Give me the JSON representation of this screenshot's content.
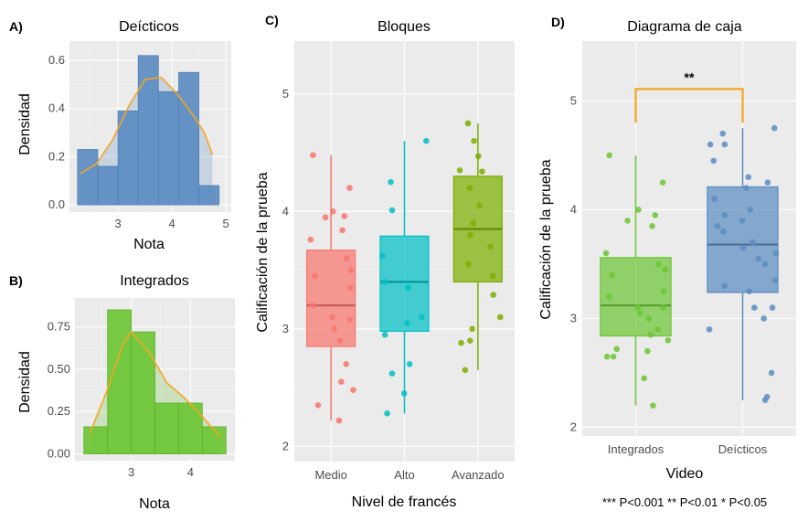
{
  "figure": {
    "footnote": "*** P<0.001 ** P<0.01 * P<0.05"
  },
  "chart_data": [
    {
      "id": "A",
      "panel_tag": "A)",
      "type": "bar",
      "subtype": "histogram_with_density",
      "title": "Deícticos",
      "xlabel": "Nota",
      "ylabel": "Densidad",
      "xlim": [
        2.1,
        5.1
      ],
      "ylim": [
        -0.03,
        0.68
      ],
      "x_ticks": [
        3,
        4,
        5
      ],
      "y_ticks": [
        0.0,
        0.2,
        0.4,
        0.6
      ],
      "y_tick_labels": [
        "0.0",
        "0.2",
        "0.4",
        "0.6"
      ],
      "bins": [
        {
          "x0": 2.25,
          "x1": 2.625,
          "density": 0.23
        },
        {
          "x0": 2.625,
          "x1": 3.0,
          "density": 0.16
        },
        {
          "x0": 3.0,
          "x1": 3.375,
          "density": 0.39
        },
        {
          "x0": 3.375,
          "x1": 3.75,
          "density": 0.62
        },
        {
          "x0": 3.75,
          "x1": 4.125,
          "density": 0.47
        },
        {
          "x0": 4.125,
          "x1": 4.5,
          "density": 0.55
        },
        {
          "x0": 4.5,
          "x1": 4.875,
          "density": 0.08
        }
      ],
      "density_curve": {
        "x": [
          2.3,
          2.6,
          2.9,
          3.2,
          3.5,
          3.8,
          4.1,
          4.4,
          4.6,
          4.75
        ],
        "y": [
          0.13,
          0.17,
          0.27,
          0.41,
          0.52,
          0.53,
          0.46,
          0.37,
          0.3,
          0.21
        ]
      },
      "colors": {
        "fill": "#5b8cc1",
        "edge": "#4f7fb5",
        "curve": "#f5a623"
      }
    },
    {
      "id": "B",
      "panel_tag": "B)",
      "type": "bar",
      "subtype": "histogram_with_density",
      "title": "Integrados",
      "xlabel": "Nota",
      "ylabel": "Densidad",
      "xlim": [
        2.05,
        4.75
      ],
      "ylim": [
        -0.04,
        0.92
      ],
      "x_ticks": [
        3,
        4
      ],
      "y_ticks": [
        0.0,
        0.25,
        0.5,
        0.75
      ],
      "y_tick_labels": [
        "0.00",
        "0.25",
        "0.50",
        "0.75"
      ],
      "bins": [
        {
          "x0": 2.2,
          "x1": 2.6,
          "density": 0.16
        },
        {
          "x0": 2.6,
          "x1": 3.0,
          "density": 0.85
        },
        {
          "x0": 3.0,
          "x1": 3.4,
          "density": 0.72
        },
        {
          "x0": 3.4,
          "x1": 3.8,
          "density": 0.3
        },
        {
          "x0": 3.8,
          "x1": 4.2,
          "density": 0.3
        },
        {
          "x0": 4.2,
          "x1": 4.6,
          "density": 0.16
        }
      ],
      "density_curve": {
        "x": [
          2.3,
          2.6,
          2.85,
          3.0,
          3.3,
          3.6,
          3.9,
          4.2,
          4.5
        ],
        "y": [
          0.12,
          0.38,
          0.64,
          0.72,
          0.6,
          0.42,
          0.33,
          0.22,
          0.1
        ]
      },
      "colors": {
        "fill": "#6cc534",
        "edge": "#5cb02a",
        "curve": "#f5a623"
      }
    },
    {
      "id": "C",
      "panel_tag": "C)",
      "type": "box",
      "title": "Bloques",
      "xlabel": "Nivel de francés",
      "ylabel": "Calificación de la prueba",
      "ylim": [
        1.87,
        5.45
      ],
      "y_ticks": [
        2,
        3,
        4,
        5
      ],
      "categories": [
        "Medio",
        "Alto",
        "Avanzado"
      ],
      "boxes": [
        {
          "name": "Medio",
          "color": "#f8766d",
          "whisker_low": 2.22,
          "q1": 2.85,
          "median": 3.2,
          "q3": 3.67,
          "whisker_high": 4.48,
          "points": [
            4.48,
            4.2,
            4.0,
            3.96,
            3.95,
            3.84,
            3.76,
            3.6,
            3.5,
            3.45,
            3.35,
            3.2,
            3.1,
            3.08,
            3.0,
            2.9,
            2.7,
            2.55,
            2.48,
            2.35,
            2.22
          ]
        },
        {
          "name": "Alto",
          "color": "#00bfc4",
          "whisker_low": 2.28,
          "q1": 2.98,
          "median": 3.4,
          "q3": 3.79,
          "whisker_high": 4.6,
          "points": [
            4.6,
            4.25,
            4.01,
            3.62,
            3.4,
            3.35,
            3.1,
            3.05,
            2.95,
            2.7,
            2.62,
            2.45,
            2.28
          ]
        },
        {
          "name": "Avanzado",
          "color": "#7cae00",
          "whisker_low": 2.65,
          "q1": 3.4,
          "median": 3.85,
          "q3": 4.3,
          "whisker_high": 4.75,
          "points": [
            4.75,
            4.6,
            4.47,
            4.35,
            4.34,
            4.2,
            4.05,
            3.9,
            3.8,
            3.7,
            3.55,
            3.45,
            3.29,
            3.1,
            3.0,
            2.9,
            2.88,
            2.65
          ]
        }
      ]
    },
    {
      "id": "D",
      "panel_tag": "D)",
      "type": "box",
      "title": "Diagrama de caja",
      "xlabel": "Video",
      "ylabel": "Calificación de la prueba",
      "ylim": [
        1.92,
        5.55
      ],
      "y_ticks": [
        2,
        3,
        4,
        5
      ],
      "categories": [
        "Integrados",
        "Deícticos"
      ],
      "significance": {
        "label": "**",
        "y": 5.11,
        "drop_to": 4.8
      },
      "boxes": [
        {
          "name": "Integrados",
          "color": "#6cc534",
          "whisker_low": 2.2,
          "q1": 2.84,
          "median": 3.12,
          "q3": 3.56,
          "whisker_high": 4.5,
          "points": [
            4.5,
            4.25,
            4.0,
            3.95,
            3.9,
            3.85,
            3.6,
            3.5,
            3.45,
            3.4,
            3.25,
            3.2,
            3.1,
            3.1,
            3.05,
            3.0,
            2.9,
            2.85,
            2.8,
            2.72,
            2.7,
            2.65,
            2.65,
            2.45,
            2.2
          ]
        },
        {
          "name": "Deícticos",
          "color": "#5b8cc1",
          "whisker_low": 2.25,
          "q1": 3.24,
          "median": 3.68,
          "q3": 4.21,
          "whisker_high": 4.75,
          "points": [
            4.75,
            4.7,
            4.6,
            4.6,
            4.45,
            4.3,
            4.25,
            4.2,
            4.1,
            4.0,
            3.95,
            3.9,
            3.85,
            3.8,
            3.7,
            3.65,
            3.6,
            3.55,
            3.5,
            3.35,
            3.3,
            3.25,
            3.1,
            3.1,
            3.0,
            2.9,
            2.5,
            2.28,
            2.25
          ]
        }
      ]
    }
  ]
}
